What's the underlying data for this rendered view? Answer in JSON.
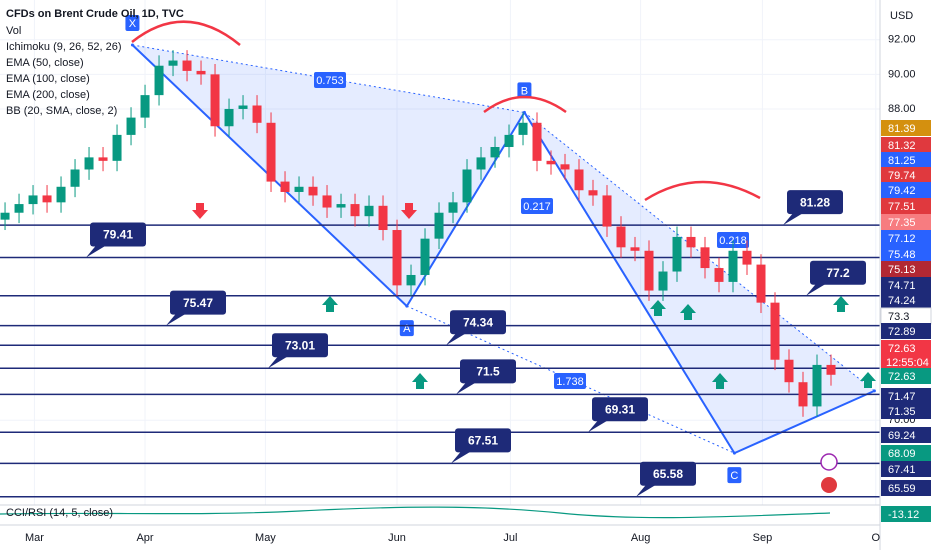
{
  "chart_data": {
    "type": "candlestick",
    "title": "CFDs on Brent Crude Oil, 1D, TVC",
    "indicators": [
      "Vol",
      "Ichimoku (9, 26, 52, 26)",
      "EMA (50, close)",
      "EMA (100, close)",
      "EMA (200, close)",
      "BB (20, SMA, close, 2)"
    ],
    "lower_pane": "CCI/RSI (14, 5, close)",
    "indicator_value": -13.12,
    "currency": "USD",
    "countdown": "12:55:04",
    "up_color": "#089981",
    "down_color": "#f23645",
    "open": [
      81.6,
      82.0,
      82.5,
      83.0,
      82.6,
      83.5,
      84.5,
      85.2,
      85.0,
      86.5,
      87.5,
      88.8,
      90.5,
      90.8,
      90.2,
      90.0,
      87.0,
      88.0,
      88.2,
      87.2,
      83.8,
      83.2,
      83.5,
      83.0,
      82.3,
      82.5,
      81.8,
      82.4,
      81.0,
      77.8,
      78.4,
      80.5,
      82.0,
      82.6,
      84.5,
      85.2,
      85.8,
      86.5,
      87.2,
      85.0,
      84.8,
      84.5,
      83.3,
      83.0,
      81.2,
      80.0,
      79.8,
      77.5,
      78.6,
      80.6,
      80.0,
      78.8,
      78.0,
      79.8,
      79.0,
      76.8,
      73.5,
      72.2,
      70.8,
      73.2
    ],
    "high": [
      82.6,
      83.1,
      83.6,
      83.6,
      84.1,
      85.1,
      85.8,
      85.8,
      87.1,
      88.1,
      89.4,
      91.1,
      91.4,
      91.4,
      90.8,
      90.6,
      88.6,
      88.8,
      88.8,
      87.8,
      84.4,
      84.1,
      84.1,
      83.6,
      83.1,
      83.1,
      83.0,
      83.0,
      81.6,
      79.0,
      81.1,
      82.6,
      83.2,
      85.1,
      85.8,
      86.4,
      87.1,
      87.8,
      87.8,
      85.6,
      85.4,
      85.1,
      83.9,
      83.6,
      81.8,
      80.6,
      80.4,
      79.2,
      81.2,
      81.2,
      80.6,
      79.4,
      80.4,
      80.4,
      79.6,
      77.4,
      74.1,
      72.8,
      73.8,
      73.8
    ],
    "low": [
      81.0,
      81.4,
      81.9,
      82.0,
      82.0,
      82.9,
      83.9,
      84.4,
      84.4,
      85.9,
      86.9,
      88.2,
      89.9,
      89.6,
      89.4,
      86.4,
      86.4,
      87.4,
      86.6,
      83.2,
      82.6,
      82.6,
      82.4,
      81.7,
      81.7,
      81.2,
      81.2,
      80.4,
      77.2,
      77.2,
      77.8,
      79.9,
      81.4,
      82.0,
      83.9,
      84.6,
      85.2,
      85.9,
      84.4,
      84.2,
      83.9,
      82.7,
      82.4,
      80.6,
      79.4,
      79.2,
      76.9,
      76.9,
      78.0,
      79.4,
      78.2,
      77.4,
      77.4,
      78.4,
      76.2,
      72.9,
      71.6,
      70.2,
      70.2,
      72.0
    ],
    "close": [
      82.0,
      82.5,
      83.0,
      82.6,
      83.5,
      84.5,
      85.2,
      85.0,
      86.5,
      87.5,
      88.8,
      90.5,
      90.8,
      90.2,
      90.0,
      87.0,
      88.0,
      88.2,
      87.2,
      83.8,
      83.2,
      83.5,
      83.0,
      82.3,
      82.5,
      81.8,
      82.4,
      81.0,
      77.8,
      78.4,
      80.5,
      82.0,
      82.6,
      84.5,
      85.2,
      85.8,
      86.5,
      87.2,
      85.0,
      84.8,
      84.5,
      83.3,
      83.0,
      81.2,
      80.0,
      79.8,
      77.5,
      78.6,
      80.6,
      80.0,
      78.8,
      78.0,
      79.8,
      79.0,
      76.8,
      73.5,
      72.2,
      70.8,
      73.2,
      72.63
    ],
    "xlim": [
      -0.36,
      62.5
    ],
    "xticks": [
      {
        "value": 2.1,
        "label": "Mar"
      },
      {
        "value": 10,
        "label": "Apr"
      },
      {
        "value": 18.6,
        "label": "May"
      },
      {
        "value": 28,
        "label": "Jun"
      },
      {
        "value": 36.1,
        "label": "Jul"
      },
      {
        "value": 45.4,
        "label": "Aug"
      },
      {
        "value": 54.1,
        "label": "Sep"
      },
      {
        "value": 62.2,
        "label": "O"
      }
    ],
    "ylim": [
      65.1,
      94.3
    ],
    "yticks": [
      {
        "value": 92,
        "label": "92.00"
      },
      {
        "value": 90,
        "label": "90.00"
      },
      {
        "value": 88,
        "label": "88.00"
      },
      {
        "value": 70,
        "label": "70.00"
      }
    ],
    "levels": [
      81.28,
      79.41,
      77.2,
      75.47,
      74.34,
      73.01,
      71.5,
      69.31,
      67.51,
      65.58
    ],
    "level_color": "#1e2a78",
    "pattern": {
      "x": [
        9.1,
        28.7,
        37.1,
        52.1,
        62.1
      ],
      "price": [
        91.7,
        76.6,
        87.8,
        68.1,
        71.7
      ],
      "labels": [
        "X",
        "A",
        "B",
        "C"
      ],
      "ratios": [
        "0.753",
        "0.217",
        "0.218",
        "1.738"
      ],
      "color": "#2962ff"
    },
    "price_labels": [
      {
        "value": 81.39,
        "color": "#d4900f"
      },
      {
        "value": 81.32,
        "color": "#e0393e"
      },
      {
        "value": 81.25,
        "color": "#2962ff"
      },
      {
        "value": 79.74,
        "color": "#e0393e"
      },
      {
        "value": 79.42,
        "color": "#2962ff"
      },
      {
        "value": 77.51,
        "color": "#e0393e"
      },
      {
        "value": 77.35,
        "color": "#f77c80"
      },
      {
        "value": 77.12,
        "color": "#2962ff"
      },
      {
        "value": 75.48,
        "color": "#2962ff"
      },
      {
        "value": 75.13,
        "color": "#b22833"
      },
      {
        "value": 74.71,
        "color": "#1e2a78"
      },
      {
        "value": 74.24,
        "color": "#1e2a78"
      },
      {
        "value": 73.3,
        "color": "#ffffff"
      },
      {
        "value": 72.89,
        "color": "#1e2a78"
      },
      {
        "value": 72.63,
        "color": "#f23645"
      },
      {
        "value": 72.63,
        "color": "#089981"
      },
      {
        "value": 71.47,
        "color": "#1e2a78"
      },
      {
        "value": 71.35,
        "color": "#1e2a78"
      },
      {
        "value": 69.24,
        "color": "#1e2a78"
      },
      {
        "value": 68.09,
        "color": "#089981"
      },
      {
        "value": 67.41,
        "color": "#1e2a78"
      },
      {
        "value": 65.59,
        "color": "#1e2a78"
      }
    ]
  }
}
